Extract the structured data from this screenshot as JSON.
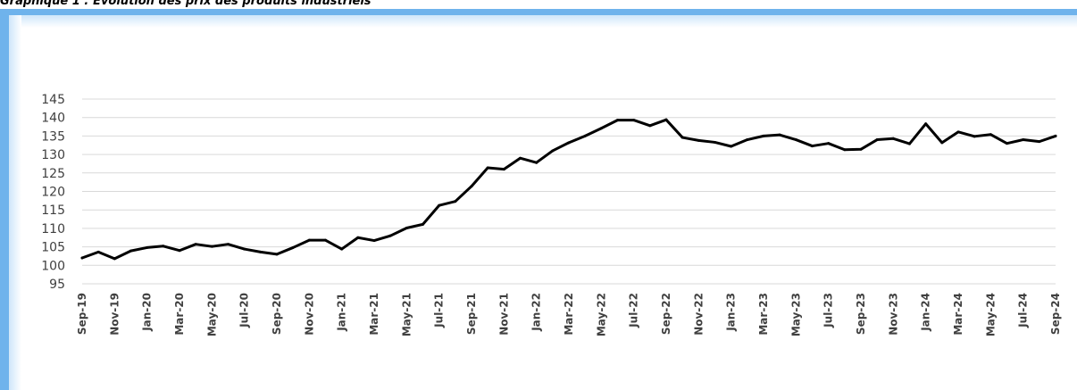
{
  "caption": "Graphique 1 : Évolution des prix des produits industriels",
  "colors": {
    "frame": "#6fb3ec",
    "line": "#000000",
    "grid": "#d9d9d9"
  },
  "chart_data": {
    "type": "line",
    "title": "",
    "xlabel": "",
    "ylabel": "",
    "ylim": [
      95,
      145
    ],
    "yticks": [
      95,
      100,
      105,
      110,
      115,
      120,
      125,
      130,
      135,
      140,
      145
    ],
    "grid": true,
    "x": [
      "Sep-19",
      "Oct-19",
      "Nov-19",
      "Dec-19",
      "Jan-20",
      "Feb-20",
      "Mar-20",
      "Apr-20",
      "May-20",
      "Jun-20",
      "Jul-20",
      "Aug-20",
      "Sep-20",
      "Oct-20",
      "Nov-20",
      "Dec-20",
      "Jan-21",
      "Feb-21",
      "Mar-21",
      "Apr-21",
      "May-21",
      "Jun-21",
      "Jul-21",
      "Aug-21",
      "Sep-21",
      "Oct-21",
      "Nov-21",
      "Dec-21",
      "Jan-22",
      "Feb-22",
      "Mar-22",
      "Apr-22",
      "May-22",
      "Jun-22",
      "Jul-22",
      "Aug-22",
      "Sep-22",
      "Oct-22",
      "Nov-22",
      "Dec-22",
      "Jan-23",
      "Feb-23",
      "Mar-23",
      "Apr-23",
      "May-23",
      "Jun-23",
      "Jul-23",
      "Aug-23",
      "Sep-23",
      "Oct-23",
      "Nov-23",
      "Dec-23",
      "Jan-24",
      "Feb-24",
      "Mar-24",
      "Apr-24",
      "May-24",
      "Jun-24",
      "Jul-24",
      "Aug-24",
      "Sep-24"
    ],
    "xtick_labels": [
      "Sep-19",
      "Nov-19",
      "Jan-20",
      "Mar-20",
      "May-20",
      "Jul-20",
      "Sep-20",
      "Nov-20",
      "Jan-21",
      "Mar-21",
      "May-21",
      "Jul-21",
      "Sep-21",
      "Nov-21",
      "Jan-22",
      "Mar-22",
      "May-22",
      "Jul-22",
      "Sep-22",
      "Nov-22",
      "Jan-23",
      "Mar-23",
      "May-23",
      "Jul-23",
      "Sep-23",
      "Nov-23",
      "Jan-24",
      "Mar-24",
      "May-24",
      "Jul-24",
      "Sep-24"
    ],
    "series": [
      {
        "values": [
          102.0,
          103.6,
          101.8,
          103.9,
          104.8,
          105.2,
          104.0,
          105.7,
          105.1,
          105.7,
          104.4,
          103.6,
          103.0,
          104.8,
          106.8,
          106.8,
          104.4,
          107.5,
          106.7,
          108.0,
          110.1,
          111.1,
          116.2,
          117.3,
          121.4,
          126.4,
          126.0,
          129.0,
          127.8,
          131.0,
          133.2,
          135.0,
          137.1,
          139.3,
          139.3,
          137.8,
          139.4,
          134.6,
          133.8,
          133.3,
          132.2,
          134.0,
          135.0,
          135.3,
          134.0,
          132.3,
          133.0,
          131.3,
          131.4,
          134.0,
          134.3,
          132.9,
          138.3,
          133.2,
          136.1,
          134.9,
          135.4,
          133.0,
          134.0,
          133.5,
          135.0
        ]
      }
    ]
  }
}
